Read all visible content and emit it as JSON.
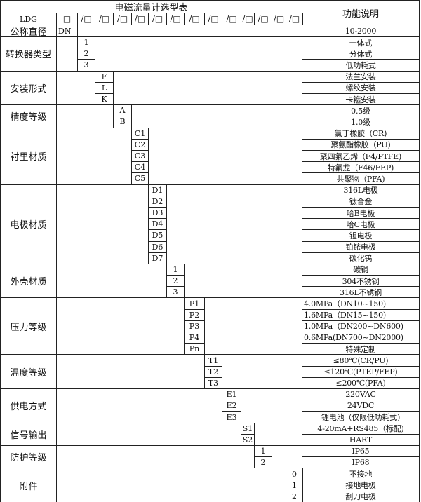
{
  "title": "电磁流量计选型表",
  "function_header": "功能说明",
  "model": "LDG",
  "model_slots": [
    "□",
    "/□",
    "/□",
    "/□",
    "/□",
    "/□",
    "/□",
    "/□",
    "/□",
    "/□",
    "/□",
    "/□",
    "/□",
    "/□"
  ],
  "nominal": {
    "label": "公称直径",
    "code": "DN",
    "desc": "10-2000"
  },
  "groups": [
    {
      "label": "转换器类型",
      "slot": 0,
      "rows": [
        {
          "code": "1",
          "desc": "一体式"
        },
        {
          "code": "2",
          "desc": "分体式"
        },
        {
          "code": "3",
          "desc": "低功耗式"
        }
      ]
    },
    {
      "label": "安装形式",
      "slot": 1,
      "rows": [
        {
          "code": "F",
          "desc": "法兰安装"
        },
        {
          "code": "L",
          "desc": "螺纹安装"
        },
        {
          "code": "K",
          "desc": "卡箍安装"
        }
      ]
    },
    {
      "label": "精度等级",
      "slot": 2,
      "rows": [
        {
          "code": "A",
          "desc": "0.5级"
        },
        {
          "code": "B",
          "desc": "1.0级"
        }
      ]
    },
    {
      "label": "衬里材质",
      "slot": 3,
      "rows": [
        {
          "code": "C1",
          "desc": "氯丁橡胶（CR)"
        },
        {
          "code": "C2",
          "desc": "聚氨酯橡胶（PU)"
        },
        {
          "code": "C3",
          "desc": "聚四氟乙烯（F4/PTFE)"
        },
        {
          "code": "C4",
          "desc": "特氟龙（F46/FEP)"
        },
        {
          "code": "C5",
          "desc": "共聚物（PFA)"
        }
      ]
    },
    {
      "label": "电极材质",
      "slot": 4,
      "rows": [
        {
          "code": "D1",
          "desc": "316L电极"
        },
        {
          "code": "D2",
          "desc": "钛合金"
        },
        {
          "code": "D3",
          "desc": "哈B电极"
        },
        {
          "code": "D4",
          "desc": "哈C电极"
        },
        {
          "code": "D5",
          "desc": "钽电极"
        },
        {
          "code": "D6",
          "desc": "铂铱电极"
        },
        {
          "code": "D7",
          "desc": "碳化钨"
        }
      ]
    },
    {
      "label": "外壳材质",
      "slot": 5,
      "rows": [
        {
          "code": "1",
          "desc": "碳钢"
        },
        {
          "code": "2",
          "desc": "304不锈钢"
        },
        {
          "code": "3",
          "desc": "316L不锈钢"
        }
      ]
    },
    {
      "label": "压力等级",
      "slot": 6,
      "rows": [
        {
          "code": "P1",
          "desc": "4.0MPa（DN10~150)",
          "left": true
        },
        {
          "code": "P2",
          "desc": "1.6MPa（DN15~150)",
          "left": true
        },
        {
          "code": "P3",
          "desc": "1.0MPa（DN200~DN600)",
          "left": true
        },
        {
          "code": "P4",
          "desc": "0.6MPa(DN700~DN2000)",
          "left": true
        },
        {
          "code": "Pn",
          "desc": "特殊定制"
        }
      ]
    },
    {
      "label": "温度等级",
      "slot": 7,
      "rows": [
        {
          "code": "T1",
          "desc": "≤80℃(CR/PU)"
        },
        {
          "code": "T2",
          "desc": "≤120℃(PTEP/FEP)"
        },
        {
          "code": "T3",
          "desc": "≤200℃(PFA)"
        }
      ]
    },
    {
      "label": "供电方式",
      "slot": 8,
      "rows": [
        {
          "code": "E1",
          "desc": "220VAC"
        },
        {
          "code": "E2",
          "desc": "24VDC"
        },
        {
          "code": "E3",
          "desc": "锂电池（仅限低功耗式)"
        }
      ]
    },
    {
      "label": "信号输出",
      "slot": 9,
      "rows": [
        {
          "code": "S1",
          "desc": "4-20mA+RS485（标配)"
        },
        {
          "code": "S2",
          "desc": "HART"
        }
      ]
    },
    {
      "label": "防护等级",
      "slot": 10,
      "rows": [
        {
          "code": "1",
          "desc": "IP65"
        },
        {
          "code": "2",
          "desc": "IP68"
        }
      ]
    },
    {
      "label": "附件",
      "slot": 12,
      "rows": [
        {
          "code": "0",
          "desc": "不接地"
        },
        {
          "code": "1",
          "desc": "接地电极"
        },
        {
          "code": "2",
          "desc": "刮刀电极"
        }
      ]
    }
  ]
}
